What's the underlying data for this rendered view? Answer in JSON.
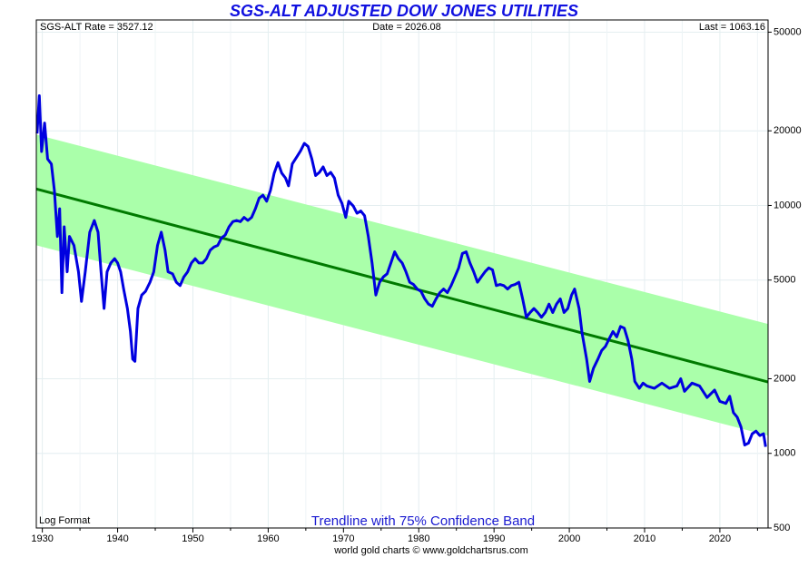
{
  "chart_data": {
    "type": "line",
    "title": "SGS-ALT ADJUSTED DOW JONES UTILITIES",
    "info_left": "SGS-ALT Rate = 3527.12",
    "info_center": "Date = 2026.08",
    "info_right": "Last = 1063.16",
    "scale_note": "Log Format",
    "annotation": "Trendline with 75% Confidence Band",
    "footer": "world gold charts © www.goldchartsrus.com",
    "log_scale": true,
    "grid": true,
    "xlim": [
      1929.2,
      2026.4
    ],
    "ylim": [
      500,
      56000
    ],
    "xticks": [
      1930,
      1940,
      1950,
      1960,
      1970,
      1980,
      1990,
      2000,
      2010,
      2020
    ],
    "xminorticks": [
      1935,
      1945,
      1955,
      1965,
      1975,
      1985,
      1995,
      2005,
      2015,
      2025
    ],
    "yticks": [
      500,
      1000,
      2000,
      5000,
      10000,
      20000,
      50000
    ],
    "band": {
      "color": "#aaffaa",
      "x": [
        1929.2,
        2026.4
      ],
      "upper": [
        19300,
        3325
      ],
      "lower": [
        6910,
        1180
      ]
    },
    "trendline": {
      "color": "#007a00",
      "x": [
        1929.2,
        2026.4
      ],
      "values": [
        11650,
        1940
      ]
    },
    "line": {
      "color": "#0000e0",
      "x": [
        1929.3,
        1929.6,
        1929.9,
        1930.3,
        1930.7,
        1931.2,
        1931.6,
        1932.0,
        1932.3,
        1932.6,
        1932.9,
        1933.3,
        1933.6,
        1934.2,
        1934.8,
        1935.2,
        1935.7,
        1936.3,
        1936.9,
        1937.4,
        1937.8,
        1938.2,
        1938.6,
        1939.1,
        1939.6,
        1940.0,
        1940.4,
        1940.8,
        1941.3,
        1941.7,
        1942.0,
        1942.3,
        1942.7,
        1943.2,
        1943.7,
        1944.3,
        1944.8,
        1945.3,
        1945.8,
        1946.3,
        1946.7,
        1947.3,
        1947.8,
        1948.3,
        1948.8,
        1949.3,
        1949.8,
        1950.3,
        1950.8,
        1951.3,
        1951.8,
        1952.3,
        1952.8,
        1953.3,
        1953.8,
        1954.3,
        1954.8,
        1955.3,
        1955.8,
        1956.3,
        1956.8,
        1957.3,
        1957.8,
        1958.3,
        1958.8,
        1959.3,
        1959.8,
        1960.3,
        1960.8,
        1961.3,
        1961.8,
        1962.3,
        1962.7,
        1963.2,
        1963.8,
        1964.3,
        1964.8,
        1965.3,
        1965.8,
        1966.3,
        1966.8,
        1967.3,
        1967.8,
        1968.3,
        1968.8,
        1969.3,
        1969.8,
        1970.3,
        1970.7,
        1971.3,
        1971.8,
        1972.3,
        1972.8,
        1973.3,
        1973.8,
        1974.3,
        1974.8,
        1975.3,
        1975.8,
        1976.3,
        1976.8,
        1977.3,
        1977.8,
        1978.3,
        1978.8,
        1979.3,
        1979.8,
        1980.3,
        1980.8,
        1981.3,
        1981.8,
        1982.3,
        1982.8,
        1983.3,
        1983.8,
        1984.3,
        1984.8,
        1985.3,
        1985.8,
        1986.3,
        1986.8,
        1987.3,
        1987.8,
        1988.3,
        1988.8,
        1989.3,
        1989.8,
        1990.3,
        1990.8,
        1991.3,
        1991.8,
        1992.3,
        1992.8,
        1993.3,
        1993.8,
        1994.3,
        1994.8,
        1995.3,
        1995.8,
        1996.3,
        1996.8,
        1997.3,
        1997.8,
        1998.3,
        1998.8,
        1999.3,
        1999.8,
        2000.3,
        2000.7,
        2001.3,
        2001.7,
        2002.3,
        2002.7,
        2003.2,
        2003.8,
        2004.3,
        2004.8,
        2005.3,
        2005.8,
        2006.3,
        2006.8,
        2007.3,
        2007.8,
        2008.3,
        2008.7,
        2009.3,
        2009.8,
        2010.3,
        2011.3,
        2012.3,
        2013.3,
        2014.3,
        2014.8,
        2015.3,
        2016.3,
        2017.3,
        2018.3,
        2019.3,
        2020.0,
        2020.8,
        2021.3,
        2021.8,
        2022.3,
        2022.8,
        2023.3,
        2023.8,
        2024.3,
        2024.8,
        2025.3,
        2025.8,
        2026.08
      ],
      "values": [
        19500,
        27700,
        16500,
        21500,
        15400,
        14700,
        11500,
        7500,
        9700,
        4450,
        8200,
        5400,
        7500,
        6900,
        5400,
        4100,
        5400,
        7800,
        8700,
        7800,
        5400,
        3840,
        5400,
        5860,
        6100,
        5860,
        5400,
        4600,
        3840,
        3100,
        2400,
        2350,
        3840,
        4350,
        4500,
        4900,
        5400,
        6900,
        7800,
        6600,
        5400,
        5300,
        4900,
        4750,
        5150,
        5400,
        5860,
        6100,
        5860,
        5860,
        6100,
        6600,
        6800,
        6900,
        7400,
        7600,
        8200,
        8600,
        8700,
        8600,
        8950,
        8700,
        8950,
        9700,
        10700,
        11000,
        10400,
        11500,
        13500,
        14900,
        13500,
        12900,
        12000,
        14700,
        15700,
        16600,
        17800,
        17300,
        15400,
        13200,
        13600,
        14300,
        13200,
        13600,
        12900,
        11000,
        10200,
        8950,
        10400,
        9950,
        9300,
        9500,
        9100,
        7500,
        5860,
        4350,
        4900,
        5150,
        5300,
        5860,
        6500,
        6100,
        5860,
        5400,
        4900,
        4800,
        4600,
        4500,
        4200,
        4000,
        3920,
        4200,
        4450,
        4600,
        4450,
        4750,
        5150,
        5600,
        6400,
        6500,
        5860,
        5400,
        4900,
        5150,
        5400,
        5600,
        5500,
        4750,
        4800,
        4750,
        4600,
        4750,
        4800,
        4900,
        4200,
        3540,
        3700,
        3840,
        3700,
        3540,
        3700,
        4000,
        3700,
        4000,
        4200,
        3700,
        3840,
        4350,
        4600,
        3840,
        3050,
        2400,
        1950,
        2200,
        2400,
        2600,
        2700,
        2900,
        3100,
        2950,
        3250,
        3200,
        2850,
        2400,
        1950,
        1830,
        1920,
        1870,
        1830,
        1920,
        1830,
        1870,
        2000,
        1780,
        1920,
        1870,
        1680,
        1800,
        1620,
        1590,
        1700,
        1460,
        1400,
        1280,
        1080,
        1100,
        1200,
        1230,
        1180,
        1200,
        1063.16
      ]
    }
  }
}
